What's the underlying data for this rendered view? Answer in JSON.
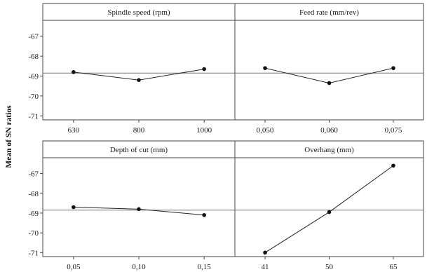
{
  "ylabel": "Mean of SN ratios",
  "chart_data": {
    "type": "line",
    "title": "",
    "ylabel": "Mean of SN ratios",
    "ylim": [
      -71.2,
      -66.2
    ],
    "yticks": [
      "-67",
      "-68",
      "-69",
      "-70",
      "-71"
    ],
    "panels": [
      {
        "title": "Spindle speed (rpm)",
        "categories": [
          "630",
          "800",
          "1000"
        ],
        "values": [
          -68.8,
          -69.2,
          -68.65
        ]
      },
      {
        "title": "Feed rate (mm/rev)",
        "categories": [
          "0,050",
          "0,060",
          "0,075"
        ],
        "values": [
          -68.6,
          -69.35,
          -68.6
        ]
      },
      {
        "title": "Depth of cut (mm)",
        "categories": [
          "0,05",
          "0,10",
          "0,15"
        ],
        "values": [
          -68.7,
          -68.8,
          -69.1
        ]
      },
      {
        "title": "Overhang (mm)",
        "categories": [
          "41",
          "50",
          "65"
        ],
        "values": [
          -71.0,
          -68.95,
          -66.6
        ]
      }
    ],
    "reference_line": -68.85,
    "grid": false,
    "legend": "none"
  }
}
